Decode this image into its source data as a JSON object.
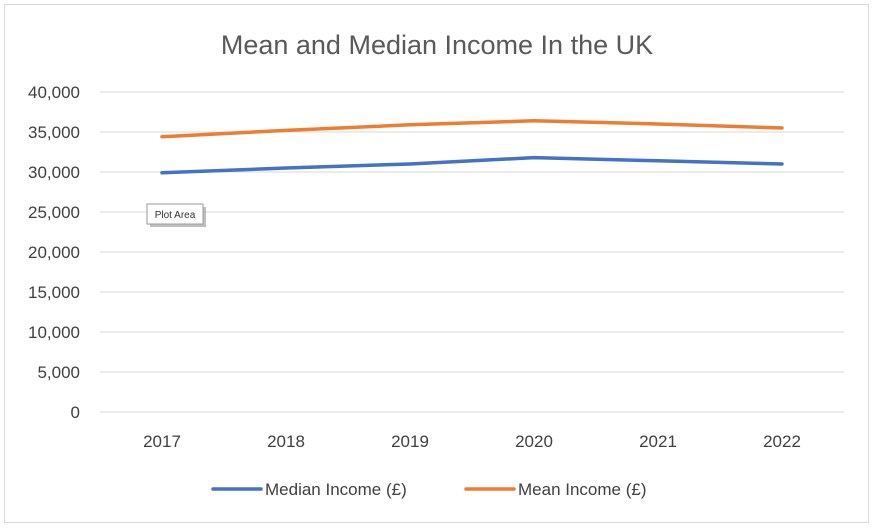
{
  "chart_data": {
    "type": "line",
    "title": "Mean and Median Income In the UK",
    "xlabel": "",
    "ylabel": "",
    "categories": [
      "2017",
      "2018",
      "2019",
      "2020",
      "2021",
      "2022"
    ],
    "ylim": [
      0,
      40000
    ],
    "yticks": [
      "0",
      "5,000",
      "10,000",
      "15,000",
      "20,000",
      "25,000",
      "30,000",
      "35,000",
      "40,000"
    ],
    "ytick_values": [
      0,
      5000,
      10000,
      15000,
      20000,
      25000,
      30000,
      35000,
      40000
    ],
    "grid": true,
    "legend_position": "bottom",
    "series": [
      {
        "name": "Median Income (£)",
        "color": "#4472C4",
        "values": [
          29900,
          30500,
          31000,
          31800,
          31400,
          31000
        ]
      },
      {
        "name": "Mean Income (£)",
        "color": "#ED7D31",
        "values": [
          34400,
          35200,
          35900,
          36400,
          36000,
          35500
        ]
      }
    ]
  },
  "tooltip": {
    "label": "Plot Area"
  }
}
